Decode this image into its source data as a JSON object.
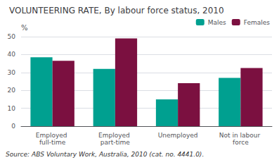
{
  "chart_data": {
    "type": "bar",
    "title": "VOLUNTEERING RATE, By labour force status, 2010",
    "ylabel": "%",
    "categories": [
      "Employed full-time",
      "Employed part-time",
      "Unemployed",
      "Not in labour force"
    ],
    "series": [
      {
        "name": "Males",
        "color": "#00A090",
        "values": [
          38.5,
          32.0,
          15.0,
          27.0
        ]
      },
      {
        "name": "Females",
        "color": "#7B1040",
        "values": [
          36.5,
          49.0,
          24.0,
          32.5
        ]
      }
    ],
    "ylim": [
      0,
      50
    ],
    "yticks": [
      0,
      10,
      20,
      30,
      40,
      50
    ],
    "grid": true,
    "legend": "upper right",
    "annotations": [
      "Source: ABS Voluntary Work, Australia, 2010 (cat. no. 4441.0)."
    ]
  }
}
